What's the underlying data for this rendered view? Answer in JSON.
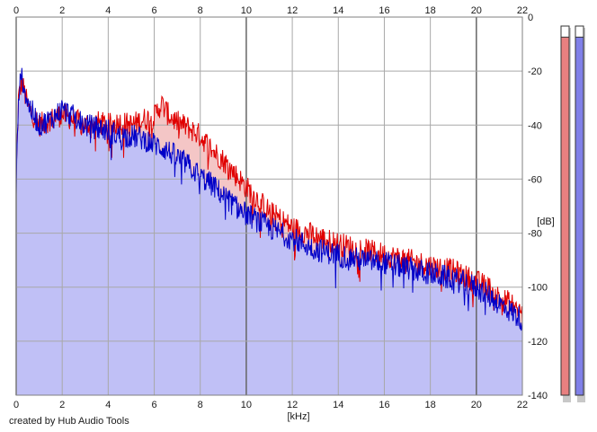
{
  "chart_data": {
    "type": "line",
    "xlabel": "[kHz]",
    "ylabel": "[dB]",
    "xlim": [
      0,
      22
    ],
    "ylim": [
      -140,
      0
    ],
    "x_ticks": [
      "0",
      "2",
      "4",
      "6",
      "8",
      "10",
      "12",
      "14",
      "16",
      "18",
      "20",
      "22"
    ],
    "y_ticks": [
      "0",
      "-20",
      "-40",
      "-60",
      "-80",
      "-100",
      "-120",
      "-140"
    ],
    "grid": true,
    "series": [
      {
        "color": "#e00000",
        "fill": "#f4c6c6",
        "x": [
          0,
          0.1,
          0.25,
          0.5,
          1,
          1.5,
          2,
          2.5,
          3,
          3.5,
          4,
          4.5,
          5,
          5.5,
          6,
          6.3,
          6.6,
          7,
          7.5,
          8,
          8.5,
          9,
          9.5,
          10,
          11,
          12,
          13,
          14,
          15,
          16,
          17,
          18,
          19,
          19.5,
          20,
          20.5,
          21,
          21.5,
          22
        ],
        "y": [
          -60,
          -30,
          -24,
          -33,
          -40,
          -38,
          -36,
          -38,
          -40,
          -39,
          -40,
          -39,
          -40,
          -38,
          -37,
          -32,
          -36,
          -39,
          -41,
          -44,
          -49,
          -53,
          -58,
          -63,
          -72,
          -78,
          -81,
          -84,
          -86,
          -88,
          -90,
          -92,
          -94,
          -96,
          -98,
          -100,
          -104,
          -106,
          -110
        ]
      },
      {
        "color": "#0000c8",
        "fill": "#c0c0f6",
        "x": [
          0,
          0.1,
          0.25,
          0.5,
          1,
          1.5,
          2,
          2.5,
          3,
          3.5,
          4,
          4.5,
          5,
          5.5,
          6,
          6.5,
          7,
          7.5,
          8,
          8.5,
          9,
          9.5,
          10,
          11,
          12,
          13,
          14,
          15,
          16,
          17,
          18,
          19,
          20,
          20.5,
          21,
          21.5,
          22
        ],
        "y": [
          -65,
          -28,
          -22,
          -32,
          -40,
          -38,
          -34,
          -37,
          -40,
          -41,
          -42,
          -44,
          -44,
          -45,
          -47,
          -49,
          -52,
          -55,
          -59,
          -62,
          -66,
          -70,
          -73,
          -78,
          -82,
          -86,
          -88,
          -90,
          -91,
          -93,
          -95,
          -97,
          -100,
          -103,
          -106,
          -109,
          -112
        ]
      }
    ],
    "level_meters": [
      {
        "color": "#e88080",
        "level": 0.97
      },
      {
        "color": "#8080e8",
        "level": 0.97
      }
    ]
  },
  "credit": "created by Hub Audio Tools"
}
